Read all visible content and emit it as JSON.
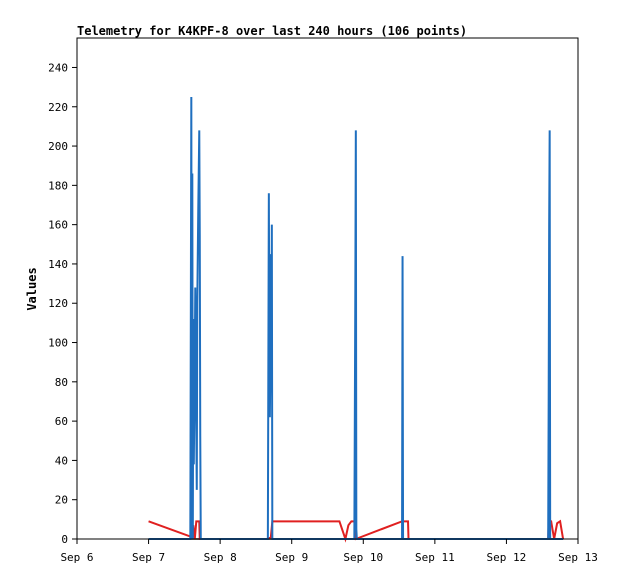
{
  "chart_data": {
    "type": "line",
    "title": "Telemetry for K4KPF-8 over last 240 hours (106 points)",
    "xlabel": "",
    "ylabel": "Values",
    "xlim": [
      "2024-09-06T00:00",
      "2024-09-13T00:00"
    ],
    "ylim": [
      0,
      255
    ],
    "x_tick_labels": [
      "Sep 6",
      "Sep 7",
      "Sep 8",
      "Sep 9",
      "Sep 10",
      "Sep 11",
      "Sep 12",
      "Sep 13"
    ],
    "y_ticks": [
      0,
      20,
      40,
      60,
      80,
      100,
      120,
      140,
      160,
      180,
      200,
      220,
      240
    ],
    "grid": false,
    "legend": "none",
    "colors": {
      "blue_series": "#1f6fbf",
      "red_series": "#e02020",
      "black_series": "#000000",
      "frame": "#000000"
    },
    "series": [
      {
        "color": "blue",
        "points": [
          [
            "2024-09-07T00:00",
            0
          ],
          [
            "2024-09-07T14:00",
            0
          ],
          [
            "2024-09-07T14:20",
            225
          ],
          [
            "2024-09-07T14:30",
            0
          ],
          [
            "2024-09-07T14:40",
            186
          ],
          [
            "2024-09-07T14:50",
            0
          ],
          [
            "2024-09-07T15:00",
            112
          ],
          [
            "2024-09-07T15:10",
            38
          ],
          [
            "2024-09-07T15:30",
            92
          ],
          [
            "2024-09-07T15:40",
            128
          ],
          [
            "2024-09-07T15:50",
            88
          ],
          [
            "2024-09-07T16:00",
            55
          ],
          [
            "2024-09-07T16:10",
            25
          ],
          [
            "2024-09-07T16:20",
            120
          ],
          [
            "2024-09-07T16:40",
            168
          ],
          [
            "2024-09-07T17:00",
            208
          ],
          [
            "2024-09-07T17:10",
            155
          ],
          [
            "2024-09-07T17:20",
            52
          ],
          [
            "2024-09-07T17:30",
            0
          ],
          [
            "2024-09-08T16:00",
            0
          ],
          [
            "2024-09-08T16:10",
            88
          ],
          [
            "2024-09-08T16:20",
            176
          ],
          [
            "2024-09-08T16:30",
            95
          ],
          [
            "2024-09-08T16:40",
            62
          ],
          [
            "2024-09-08T16:50",
            88
          ],
          [
            "2024-09-08T17:00",
            145
          ],
          [
            "2024-09-08T17:10",
            80
          ],
          [
            "2024-09-08T17:20",
            160
          ],
          [
            "2024-09-08T17:30",
            0
          ],
          [
            "2024-09-09T21:00",
            0
          ],
          [
            "2024-09-09T21:10",
            64
          ],
          [
            "2024-09-09T21:20",
            128
          ],
          [
            "2024-09-09T21:30",
            208
          ],
          [
            "2024-09-09T21:40",
            5
          ],
          [
            "2024-09-09T21:50",
            0
          ],
          [
            "2024-09-10T13:00",
            0
          ],
          [
            "2024-09-10T13:10",
            144
          ],
          [
            "2024-09-10T13:20",
            0
          ],
          [
            "2024-09-12T14:00",
            0
          ],
          [
            "2024-09-12T14:10",
            72
          ],
          [
            "2024-09-12T14:20",
            160
          ],
          [
            "2024-09-12T14:30",
            208
          ],
          [
            "2024-09-12T14:40",
            0
          ],
          [
            "2024-09-12T19:00",
            0
          ]
        ]
      },
      {
        "color": "red",
        "points": [
          [
            "2024-09-07T00:00",
            9
          ],
          [
            "2024-09-07T14:30",
            1
          ],
          [
            "2024-09-07T15:00",
            7
          ],
          [
            "2024-09-07T15:30",
            0
          ],
          [
            "2024-09-07T16:00",
            9
          ],
          [
            "2024-09-07T17:00",
            9
          ],
          [
            "2024-09-07T17:10",
            0
          ],
          [
            "2024-09-08T16:00",
            0
          ],
          [
            "2024-09-08T17:00",
            1
          ],
          [
            "2024-09-08T17:30",
            9
          ],
          [
            "2024-09-09T16:00",
            9
          ],
          [
            "2024-09-09T18:00",
            0
          ],
          [
            "2024-09-09T19:00",
            7
          ],
          [
            "2024-09-09T20:00",
            9
          ],
          [
            "2024-09-09T21:00",
            9
          ],
          [
            "2024-09-09T21:30",
            0
          ],
          [
            "2024-09-10T13:00",
            9
          ],
          [
            "2024-09-10T15:00",
            9
          ],
          [
            "2024-09-10T15:10",
            0
          ],
          [
            "2024-09-12T14:00",
            0
          ],
          [
            "2024-09-12T14:10",
            9
          ],
          [
            "2024-09-12T15:00",
            9
          ],
          [
            "2024-09-12T16:00",
            0
          ],
          [
            "2024-09-12T17:00",
            8
          ],
          [
            "2024-09-12T18:00",
            9
          ],
          [
            "2024-09-12T19:00",
            0
          ]
        ]
      },
      {
        "color": "black",
        "points": [
          [
            "2024-09-07T00:00",
            0
          ],
          [
            "2024-09-12T19:00",
            0
          ]
        ]
      }
    ]
  }
}
